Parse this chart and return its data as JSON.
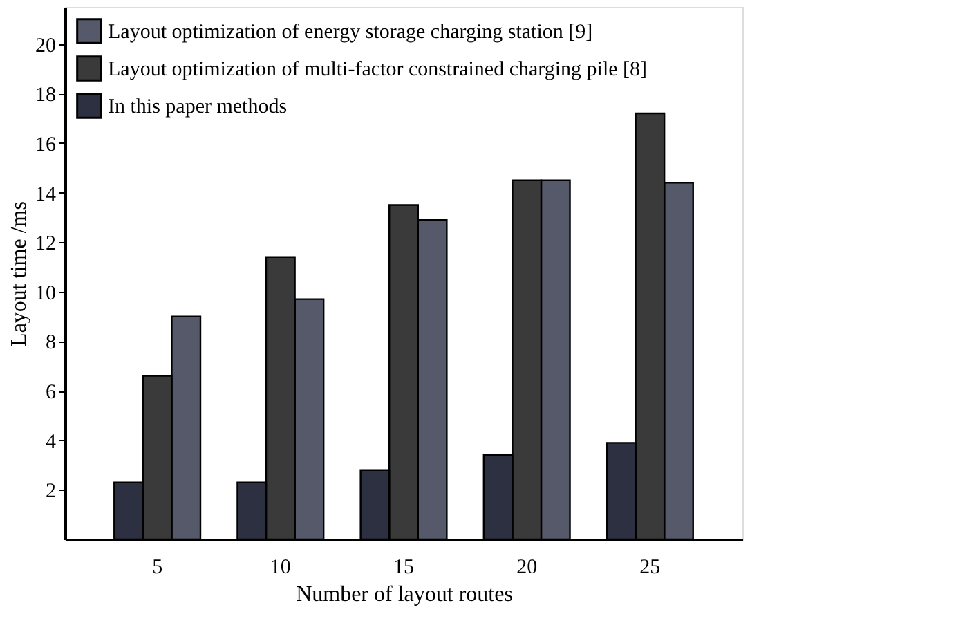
{
  "chart_data": {
    "type": "bar",
    "xlabel": "Number of layout routes",
    "ylabel": "Layout time /ms",
    "categories": [
      "5",
      "10",
      "15",
      "20",
      "25"
    ],
    "series": [
      {
        "name": "Layout optimization of energy storage charging station [9]",
        "color": "#55596a",
        "values": [
          9.0,
          9.7,
          12.9,
          14.5,
          14.4
        ]
      },
      {
        "name": "Layout optimization of multi-factor constrained charging pile [8]",
        "color": "#3a3a3a",
        "values": [
          6.6,
          11.4,
          13.5,
          14.5,
          17.2
        ]
      },
      {
        "name": "In this paper methods",
        "color": "#2c3040",
        "values": [
          2.3,
          2.3,
          2.8,
          3.4,
          3.9
        ]
      }
    ],
    "ylim": [
      0,
      21.5
    ],
    "yticks": [
      2,
      4,
      6,
      8,
      10,
      12,
      14,
      16,
      18,
      20
    ],
    "grid": false,
    "legend": "top left"
  }
}
